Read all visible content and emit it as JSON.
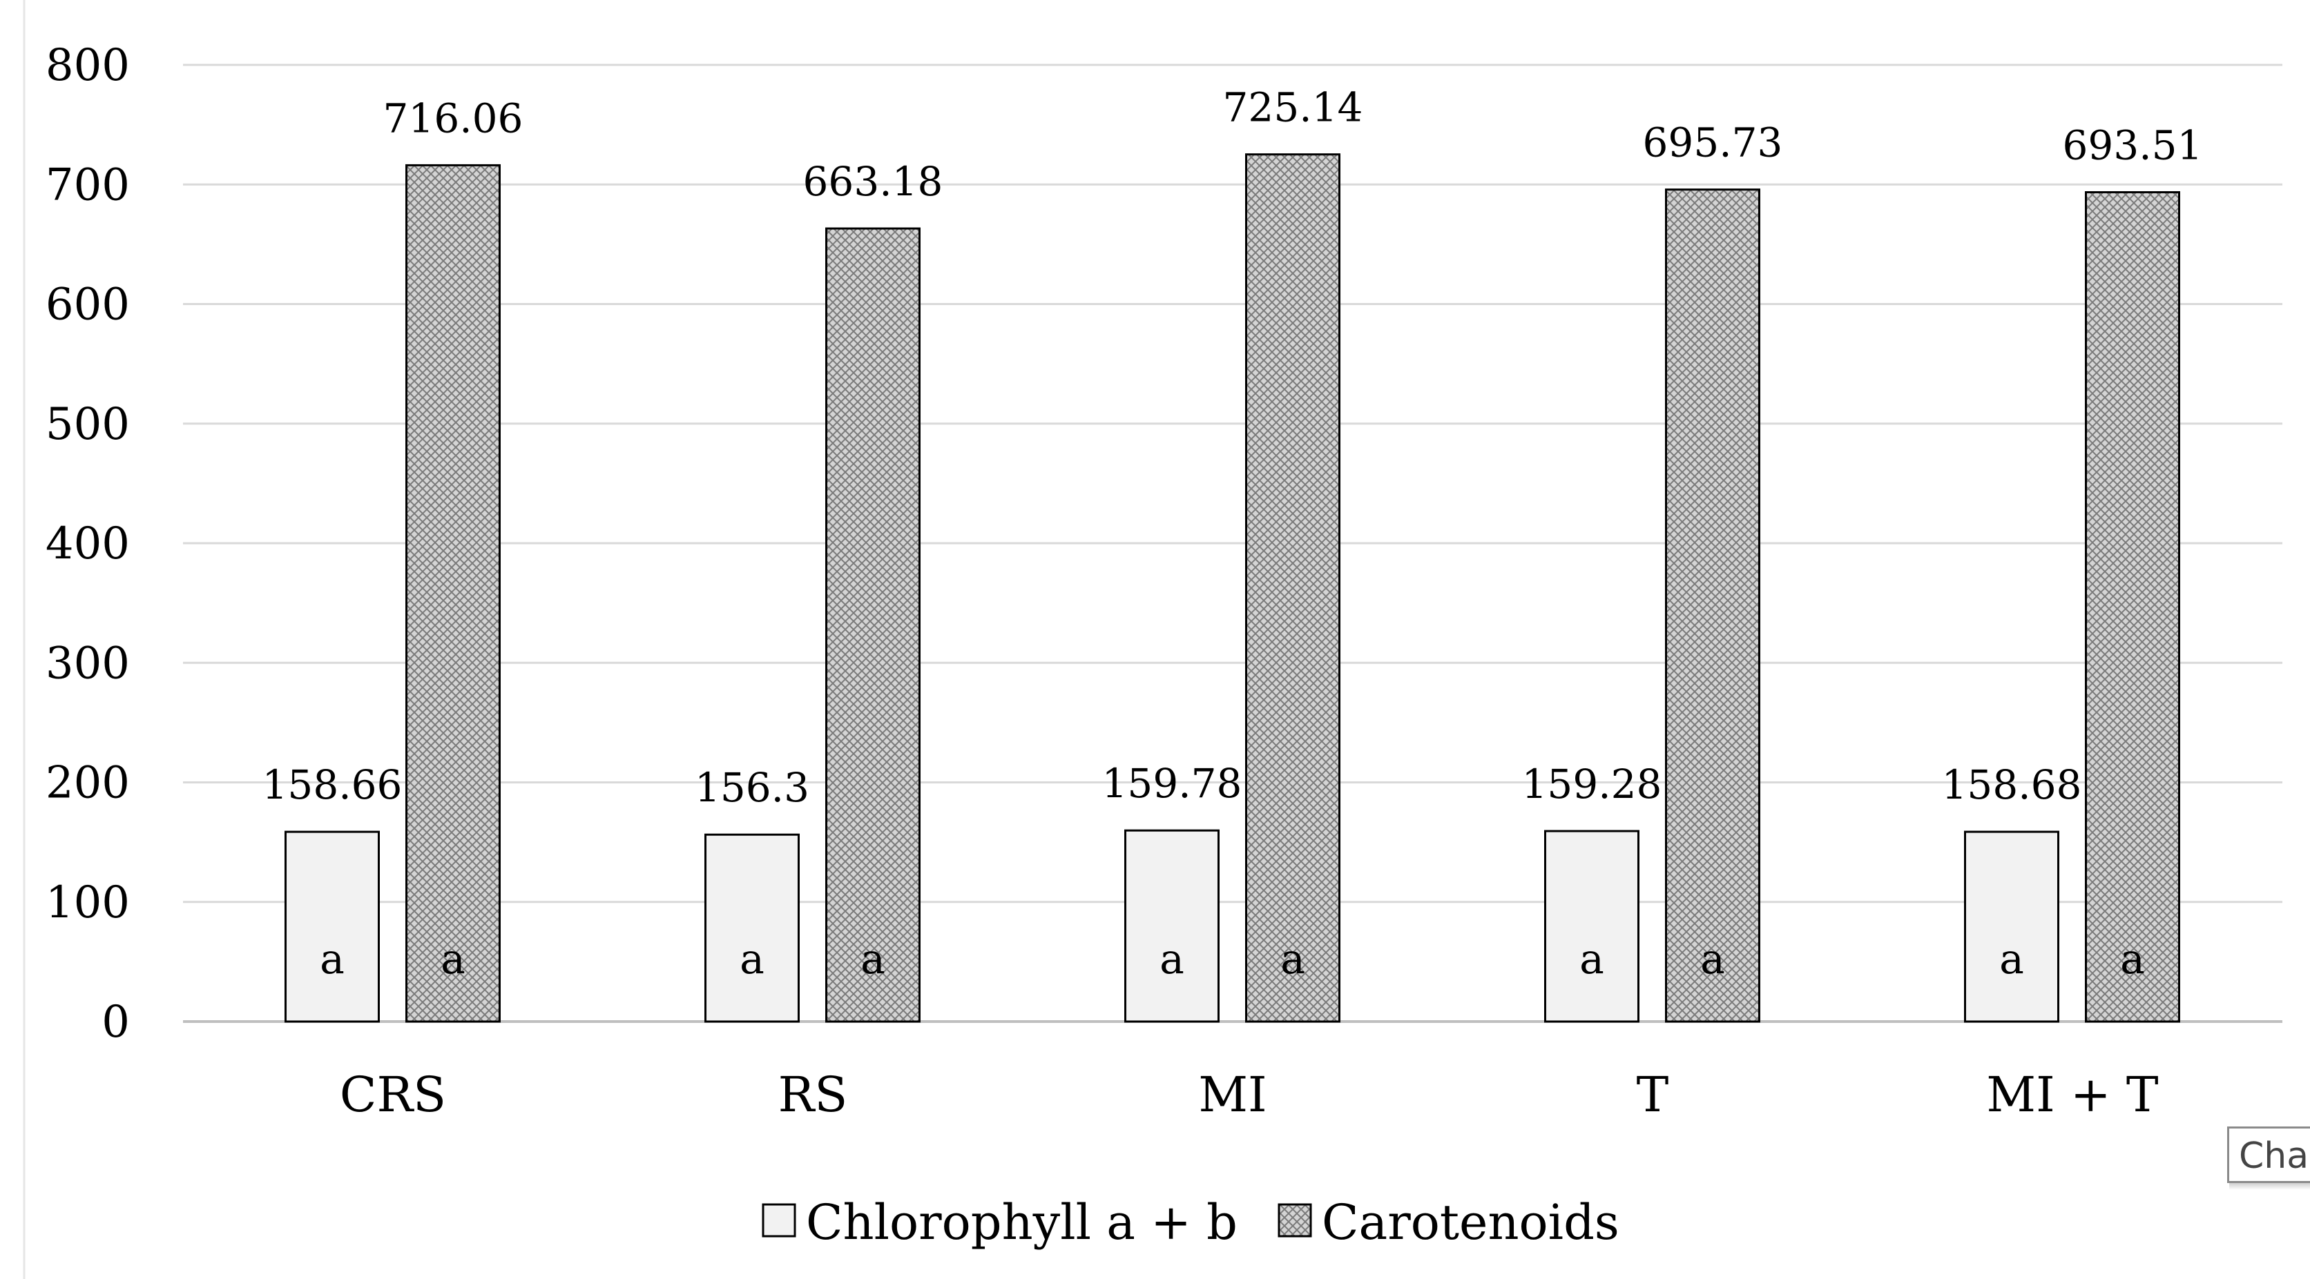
{
  "chart_data": {
    "type": "bar",
    "categories": [
      "CRS",
      "RS",
      "MI",
      "T",
      "MI + T"
    ],
    "series": [
      {
        "name": "Chlorophyll a + b",
        "values": [
          158.66,
          156.3,
          159.78,
          159.28,
          158.68
        ],
        "value_labels": [
          "158.66",
          "156.3",
          "159.78",
          "159.28",
          "158.68"
        ],
        "letters": [
          "a",
          "a",
          "a",
          "a",
          "a"
        ],
        "fill": "#f2f2f2",
        "pattern": "solid"
      },
      {
        "name": "Carotenoids",
        "values": [
          716.06,
          663.18,
          725.14,
          695.73,
          693.51
        ],
        "value_labels": [
          "716.06",
          "663.18",
          "725.14",
          "695.73",
          "693.51"
        ],
        "letters": [
          "a",
          "a",
          "a",
          "a",
          "a"
        ],
        "fill": "#d9d9d9",
        "pattern": "crosshatch"
      }
    ],
    "ylim": [
      0,
      800
    ],
    "yticks": [
      "0",
      "100",
      "200",
      "300",
      "400",
      "500",
      "600",
      "700",
      "800"
    ],
    "grid": true,
    "legend_position": "bottom"
  },
  "tooltip": {
    "text": "Cha"
  }
}
